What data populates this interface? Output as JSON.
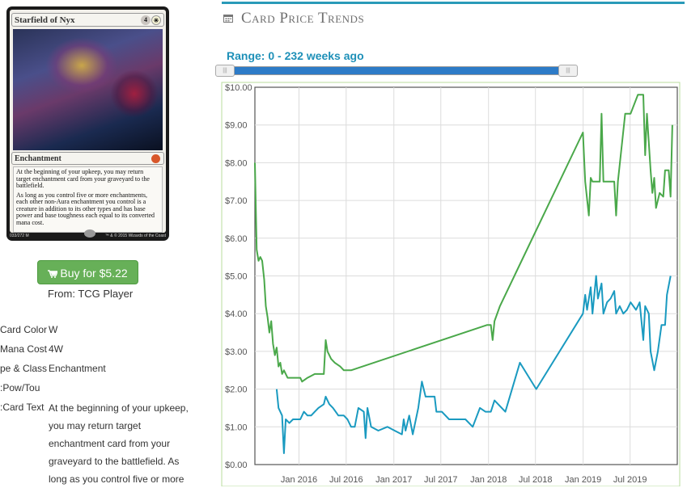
{
  "card": {
    "name": "Starfield of Nyx",
    "mana": [
      "4",
      "✳"
    ],
    "type_line": "Enchantment",
    "rules": [
      "At the beginning of your upkeep, you may return target enchantment card from your graveyard to the battlefield.",
      "As long as you control five or more enchantments, each other non-Aura enchantment you control is a creature in addition to its other types and has base power and base toughness each equal to its converted mana cost."
    ],
    "collector": "033/272 M",
    "copyright": "™ & © 2015 Wizards of the Coast"
  },
  "buy": {
    "label": "Buy for $5.22",
    "from": "From: TCG Player"
  },
  "details": [
    {
      "label": "Card Color:",
      "value": "W"
    },
    {
      "label": "Mana Cost",
      "value": "4W"
    },
    {
      "label": "Type & Class:",
      "value": "Enchantment"
    },
    {
      "label": "Pow/Tou:",
      "value": ""
    },
    {
      "label": "Card Text:",
      "value": "At the beginning of your upkeep, you may return target enchantment card from your graveyard to the battlefield. As long as you control five or more"
    }
  ],
  "header": {
    "title": "Card Price Trends",
    "range_label": "Range: 0 - 232 weeks ago"
  },
  "colors": {
    "accent": "#2a9ab8",
    "green_series": "#4aa84a",
    "blue_series": "#1a9ac0",
    "button": "#67b058"
  },
  "chart_data": {
    "type": "line",
    "x_ticks": [
      "Jan 2016",
      "Jul 2016",
      "Jan 2017",
      "Jul 2017",
      "Jan 2018",
      "Jul 2018",
      "Jan 2019",
      "Jul 2019"
    ],
    "y_ticks": [
      "$0.00",
      "$1.00",
      "$2.00",
      "$3.00",
      "$4.00",
      "$5.00",
      "$6.00",
      "$7.00",
      "$8.00",
      "$9.00",
      "$10.00"
    ],
    "ylim": [
      0,
      10
    ],
    "xlim": [
      "2015-07-15",
      "2019-12-30"
    ],
    "grid": true,
    "series": [
      {
        "color": "#4aa84a",
        "points": [
          [
            "2015-07-15",
            8.0
          ],
          [
            "2015-07-22",
            5.7
          ],
          [
            "2015-07-29",
            5.4
          ],
          [
            "2015-08-05",
            5.5
          ],
          [
            "2015-08-12",
            5.4
          ],
          [
            "2015-08-20",
            4.9
          ],
          [
            "2015-08-26",
            4.2
          ],
          [
            "2015-09-02",
            3.9
          ],
          [
            "2015-09-09",
            3.5
          ],
          [
            "2015-09-16",
            3.8
          ],
          [
            "2015-09-23",
            3.2
          ],
          [
            "2015-09-30",
            2.9
          ],
          [
            "2015-10-07",
            3.1
          ],
          [
            "2015-10-14",
            2.6
          ],
          [
            "2015-10-21",
            2.7
          ],
          [
            "2015-10-28",
            2.4
          ],
          [
            "2015-11-04",
            2.5
          ],
          [
            "2015-11-18",
            2.3
          ],
          [
            "2015-12-02",
            2.3
          ],
          [
            "2015-12-16",
            2.3
          ],
          [
            "2016-01-06",
            2.3
          ],
          [
            "2016-01-13",
            2.2
          ],
          [
            "2016-02-03",
            2.3
          ],
          [
            "2016-03-02",
            2.4
          ],
          [
            "2016-04-06",
            2.4
          ],
          [
            "2016-04-13",
            3.3
          ],
          [
            "2016-04-20",
            3.0
          ],
          [
            "2016-05-04",
            2.8
          ],
          [
            "2016-05-18",
            2.7
          ],
          [
            "2016-06-08",
            2.6
          ],
          [
            "2016-06-22",
            2.5
          ],
          [
            "2016-07-20",
            2.5
          ],
          [
            "2017-12-27",
            3.7
          ],
          [
            "2018-01-10",
            3.7
          ],
          [
            "2018-01-17",
            3.3
          ],
          [
            "2018-01-24",
            3.8
          ],
          [
            "2018-02-14",
            4.2
          ],
          [
            "2018-12-31",
            8.8
          ],
          [
            "2019-01-09",
            7.5
          ],
          [
            "2019-01-23",
            6.6
          ],
          [
            "2019-01-30",
            7.6
          ],
          [
            "2019-02-06",
            7.5
          ],
          [
            "2019-03-06",
            7.5
          ],
          [
            "2019-03-13",
            9.3
          ],
          [
            "2019-03-20",
            7.5
          ],
          [
            "2019-05-01",
            7.5
          ],
          [
            "2019-05-08",
            6.6
          ],
          [
            "2019-05-15",
            7.5
          ],
          [
            "2019-06-12",
            9.3
          ],
          [
            "2019-07-03",
            9.3
          ],
          [
            "2019-07-31",
            9.8
          ],
          [
            "2019-08-21",
            9.8
          ],
          [
            "2019-08-28",
            8.2
          ],
          [
            "2019-09-04",
            9.3
          ],
          [
            "2019-09-18",
            7.8
          ],
          [
            "2019-09-25",
            7.2
          ],
          [
            "2019-10-02",
            7.6
          ],
          [
            "2019-10-09",
            6.8
          ],
          [
            "2019-10-23",
            7.2
          ],
          [
            "2019-11-06",
            7.1
          ],
          [
            "2019-11-13",
            7.8
          ],
          [
            "2019-11-27",
            7.8
          ],
          [
            "2019-12-04",
            7.1
          ],
          [
            "2019-12-11",
            9.0
          ]
        ]
      },
      {
        "color": "#1a9ac0",
        "points": [
          [
            "2015-10-07",
            2.0
          ],
          [
            "2015-10-14",
            1.5
          ],
          [
            "2015-10-28",
            1.3
          ],
          [
            "2015-11-04",
            0.3
          ],
          [
            "2015-11-11",
            1.2
          ],
          [
            "2015-11-25",
            1.1
          ],
          [
            "2015-12-09",
            1.2
          ],
          [
            "2016-01-06",
            1.2
          ],
          [
            "2016-01-20",
            1.4
          ],
          [
            "2016-02-03",
            1.3
          ],
          [
            "2016-02-17",
            1.3
          ],
          [
            "2016-03-02",
            1.4
          ],
          [
            "2016-03-16",
            1.5
          ],
          [
            "2016-04-06",
            1.6
          ],
          [
            "2016-04-13",
            1.8
          ],
          [
            "2016-04-27",
            1.6
          ],
          [
            "2016-05-11",
            1.5
          ],
          [
            "2016-06-01",
            1.3
          ],
          [
            "2016-06-22",
            1.3
          ],
          [
            "2016-07-06",
            1.2
          ],
          [
            "2016-07-20",
            1.0
          ],
          [
            "2016-08-03",
            1.0
          ],
          [
            "2016-08-17",
            1.5
          ],
          [
            "2016-09-07",
            1.4
          ],
          [
            "2016-09-14",
            0.7
          ],
          [
            "2016-09-21",
            1.5
          ],
          [
            "2016-10-05",
            1.0
          ],
          [
            "2016-11-02",
            0.9
          ],
          [
            "2016-12-07",
            1.0
          ],
          [
            "2017-01-04",
            0.9
          ],
          [
            "2017-02-01",
            0.8
          ],
          [
            "2017-02-08",
            1.2
          ],
          [
            "2017-02-15",
            0.9
          ],
          [
            "2017-03-01",
            1.3
          ],
          [
            "2017-03-15",
            0.8
          ],
          [
            "2017-04-05",
            1.5
          ],
          [
            "2017-04-19",
            2.2
          ],
          [
            "2017-05-03",
            1.8
          ],
          [
            "2017-06-07",
            1.8
          ],
          [
            "2017-06-14",
            1.4
          ],
          [
            "2017-07-05",
            1.4
          ],
          [
            "2017-08-02",
            1.2
          ],
          [
            "2017-10-04",
            1.2
          ],
          [
            "2017-11-01",
            1.0
          ],
          [
            "2017-11-29",
            1.5
          ],
          [
            "2017-12-20",
            1.4
          ],
          [
            "2018-01-10",
            1.4
          ],
          [
            "2018-01-24",
            1.7
          ],
          [
            "2018-03-07",
            1.4
          ],
          [
            "2018-05-02",
            2.7
          ],
          [
            "2018-07-04",
            2.0
          ],
          [
            "2018-12-31",
            4.0
          ],
          [
            "2019-01-09",
            4.5
          ],
          [
            "2019-01-16",
            4.1
          ],
          [
            "2019-01-30",
            4.7
          ],
          [
            "2019-02-06",
            4.0
          ],
          [
            "2019-02-20",
            5.0
          ],
          [
            "2019-02-27",
            4.4
          ],
          [
            "2019-03-13",
            4.8
          ],
          [
            "2019-03-20",
            4.0
          ],
          [
            "2019-04-03",
            4.3
          ],
          [
            "2019-04-17",
            4.4
          ],
          [
            "2019-05-01",
            4.6
          ],
          [
            "2019-05-08",
            4.0
          ],
          [
            "2019-05-22",
            4.2
          ],
          [
            "2019-06-05",
            4.0
          ],
          [
            "2019-06-19",
            4.1
          ],
          [
            "2019-07-03",
            4.3
          ],
          [
            "2019-07-24",
            4.1
          ],
          [
            "2019-08-07",
            4.3
          ],
          [
            "2019-08-21",
            3.3
          ],
          [
            "2019-08-28",
            4.2
          ],
          [
            "2019-09-11",
            4.0
          ],
          [
            "2019-09-18",
            3.0
          ],
          [
            "2019-10-02",
            2.5
          ],
          [
            "2019-10-16",
            3.0
          ],
          [
            "2019-10-30",
            3.7
          ],
          [
            "2019-11-13",
            3.7
          ],
          [
            "2019-11-20",
            4.5
          ],
          [
            "2019-12-04",
            5.0
          ]
        ]
      }
    ]
  }
}
